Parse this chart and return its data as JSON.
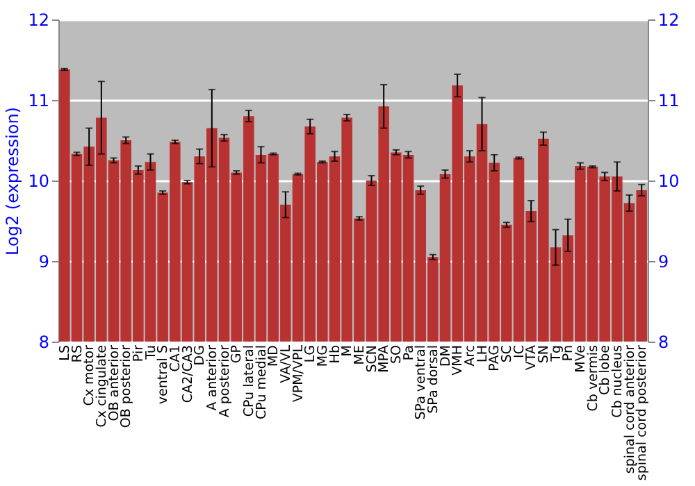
{
  "chart_data": {
    "type": "bar",
    "ylabel": "Log2 (expression)",
    "categories": [
      "LS",
      "RS",
      "Cx motor",
      "Cx cingulate",
      "OB anterior",
      "OB posterior",
      "Pir",
      "Tu",
      "ventral S",
      "CA1",
      "CA2/CA3",
      "DG",
      "A anterior",
      "A posterior",
      "GP",
      "CPu lateral",
      "CPu medial",
      "MD",
      "VA/VL",
      "VPM/VPL",
      "LG",
      "MG",
      "Hb",
      "M",
      "ME",
      "SCN",
      "MPA",
      "SO",
      "Pa",
      "SPa ventral",
      "SPa dorsal",
      "DM",
      "VMH",
      "Arc",
      "LH",
      "PAG",
      "SC",
      "IC",
      "VTA",
      "SN",
      "Tg",
      "Pn",
      "MVe",
      "Cb vermis",
      "Cb lobe",
      "Cb nucleus",
      "spinal cord anterior",
      "spinal cord posterior"
    ],
    "series": [
      {
        "color": "#b83232",
        "values": [
          11.38,
          10.33,
          10.42,
          10.78,
          10.25,
          10.5,
          10.13,
          10.23,
          9.85,
          10.48,
          9.98,
          10.3,
          10.65,
          10.53,
          10.1,
          10.8,
          10.32,
          10.33,
          9.7,
          10.08,
          10.67,
          10.23,
          10.3,
          10.78,
          9.53,
          10.0,
          10.92,
          10.35,
          10.32,
          9.88,
          9.05,
          10.08,
          11.18,
          10.3,
          10.7,
          10.22,
          9.45,
          10.28,
          9.62,
          10.52,
          9.17,
          9.32,
          10.18,
          10.17,
          10.05,
          10.05,
          9.72,
          9.88
        ],
        "errors": [
          0.01,
          0.02,
          0.23,
          0.45,
          0.03,
          0.04,
          0.05,
          0.1,
          0.02,
          0.02,
          0.02,
          0.09,
          0.48,
          0.04,
          0.02,
          0.07,
          0.1,
          0.01,
          0.16,
          0.01,
          0.09,
          0.01,
          0.06,
          0.04,
          0.02,
          0.06,
          0.27,
          0.03,
          0.04,
          0.05,
          0.03,
          0.05,
          0.14,
          0.07,
          0.33,
          0.1,
          0.03,
          0.01,
          0.13,
          0.08,
          0.22,
          0.2,
          0.04,
          0.01,
          0.05,
          0.18,
          0.1,
          0.07
        ]
      }
    ],
    "ylim": [
      8,
      12
    ],
    "yticks": [
      8,
      9,
      10,
      11,
      12
    ],
    "y2lim": [
      8,
      12
    ],
    "y2ticks": [
      8,
      9,
      10,
      11,
      12
    ],
    "grid": "y"
  }
}
